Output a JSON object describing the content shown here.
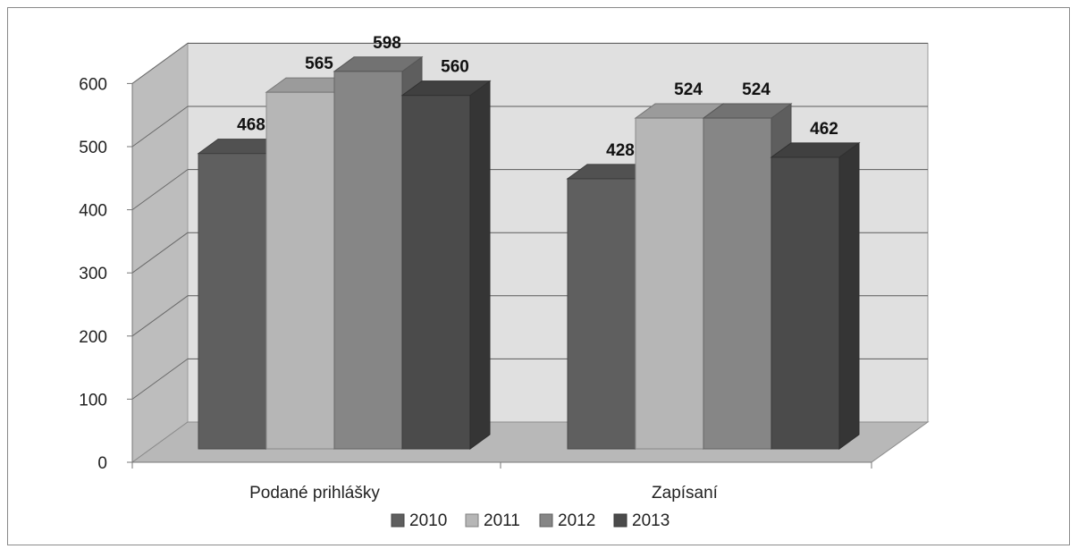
{
  "chart_data": {
    "type": "bar",
    "categories": [
      "Podané prihlášky",
      "Zapísaní"
    ],
    "series": [
      {
        "name": "2010",
        "values": [
          468,
          428
        ],
        "color": "#5f5f5f"
      },
      {
        "name": "2011",
        "values": [
          565,
          524
        ],
        "color": "#b6b6b6"
      },
      {
        "name": "2012",
        "values": [
          598,
          524
        ],
        "color": "#868686"
      },
      {
        "name": "2013",
        "values": [
          560,
          462
        ],
        "color": "#4b4b4b"
      }
    ],
    "yticks": [
      "0",
      "100",
      "200",
      "300",
      "400",
      "500",
      "600"
    ],
    "ylim": [
      0,
      600
    ],
    "data_labels": [
      [
        "468",
        "428"
      ],
      [
        "565",
        "524"
      ],
      [
        "598",
        "524"
      ],
      [
        "560",
        "462"
      ]
    ],
    "grid": true,
    "legend": "bottom",
    "style": "3d-clustered-column"
  }
}
